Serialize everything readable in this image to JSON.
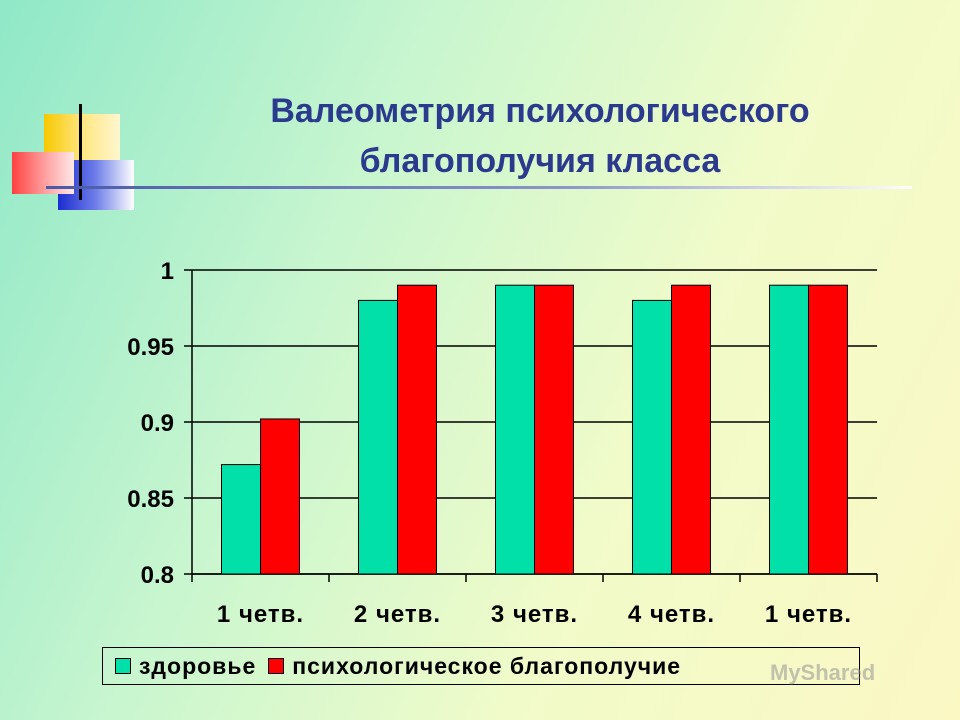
{
  "chart_data": {
    "type": "bar",
    "title_lines": [
      "Валеометрия психологического",
      "благополучия класса"
    ],
    "categories": [
      "1 четв.",
      "2 четв.",
      "3 четв.",
      "4 четв.",
      "1 четв."
    ],
    "series": [
      {
        "name": "здоровье",
        "color": "#00e0a8",
        "values": [
          0.872,
          0.98,
          0.99,
          0.98,
          0.99
        ]
      },
      {
        "name": "психологическое благополучие",
        "color": "#ff0000",
        "values": [
          0.902,
          0.99,
          0.99,
          0.99,
          0.99
        ]
      }
    ],
    "y_ticks": [
      "1",
      "0.95",
      "0.9",
      "0.85",
      "0.8"
    ],
    "ylim": [
      0.8,
      1.0
    ],
    "grid": true,
    "legend_position": "bottom"
  },
  "watermark": "MyShared"
}
